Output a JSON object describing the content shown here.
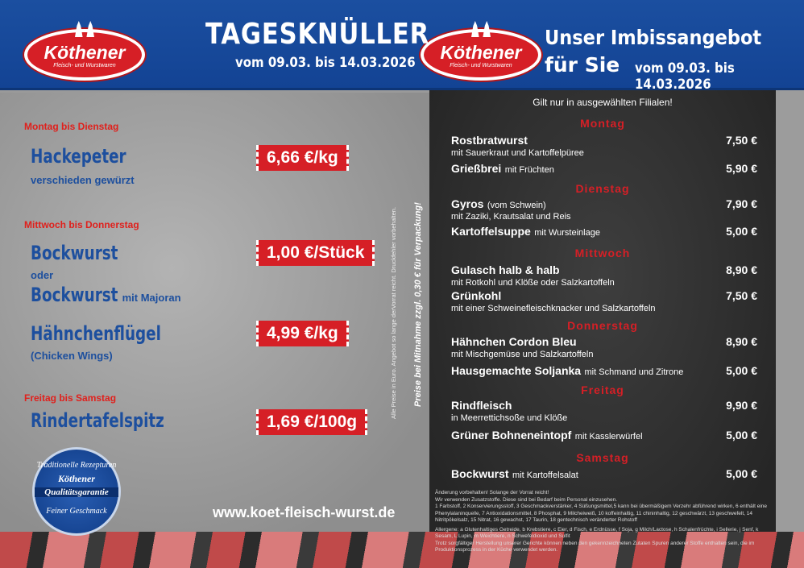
{
  "logo": {
    "name": "Köthener",
    "sub": "Fleisch- und Wurstwaren"
  },
  "left_header": {
    "title": "TAGESKNÜLLER",
    "dates": "vom 09.03. bis 14.03.2026"
  },
  "right_header": {
    "title_line1": "Unser Imbissangebot",
    "title_line2": "für Sie",
    "dates": "vom 09.03. bis 14.03.2026"
  },
  "offers": [
    {
      "days": "Montag bis Dienstag",
      "name": "Hackepeter",
      "sub": "verschieden gewürzt",
      "price": "6,66 €/kg"
    },
    {
      "days": "Mittwoch bis Donnerstag",
      "name": "Bockwurst",
      "or": "oder",
      "name2": "Bockwurst",
      "name2_extra": "mit Majoran",
      "price": "1,00 €/Stück"
    },
    {
      "name": "Hähnchenflügel",
      "sub": "(Chicken Wings)",
      "price": "4,99 €/kg"
    },
    {
      "days": "Freitag bis Samstag",
      "name": "Rindertafelspitz",
      "price": "1,69 €/100g"
    }
  ],
  "badge": {
    "top": "Traditionelle Rezepturen",
    "brand": "Köthener",
    "quality": "Qualitätsgarantie",
    "bottom": "Feiner Geschmack"
  },
  "website": "www.koet-fleisch-wurst.de",
  "side_note": "Alle Preise in Euro. Angebot so lange derVorrat reicht. Druckfehler vorbehalten.",
  "side_note2": "Preise bei Mitnahme zzgl. 0,30 € für Verpackung!",
  "menu": {
    "note": "Gilt nur in ausgewählten Filialen!",
    "days": [
      "Montag",
      "Dienstag",
      "Mittwoch",
      "Donnerstag",
      "Freitag",
      "Samstag"
    ],
    "items": [
      {
        "name": "Rostbratwurst",
        "extra": "",
        "sub": "mit Sauerkraut und Kartoffelpüree",
        "price": "7,50 €"
      },
      {
        "name": "Grießbrei",
        "extra": "mit Früchten",
        "sub": "",
        "price": "5,90 €"
      },
      {
        "name": "Gyros",
        "extra": "(vom Schwein)",
        "sub": "mit Zaziki, Krautsalat und Reis",
        "price": "7,90 €"
      },
      {
        "name": "Kartoffelsuppe",
        "extra": "mit Wursteinlage",
        "sub": "",
        "price": "5,00 €"
      },
      {
        "name": "Gulasch halb & halb",
        "extra": "",
        "sub": "mit Rotkohl und Klöße oder Salzkartoffeln",
        "price": "8,90 €"
      },
      {
        "name": "Grünkohl",
        "extra": "",
        "sub": "mit einer Schweinefleischknacker und Salzkartoffeln",
        "price": "7,50 €"
      },
      {
        "name": "Hähnchen Cordon Bleu",
        "extra": "",
        "sub": "mit Mischgemüse und Salzkartoffeln",
        "price": "8,90 €"
      },
      {
        "name": "Hausgemachte Soljanka",
        "extra": "mit Schmand und Zitrone",
        "sub": "",
        "price": "5,00 €"
      },
      {
        "name": "Rindfleisch",
        "extra": "",
        "sub": "in Meerrettichsoße und Klöße",
        "price": "9,90 €"
      },
      {
        "name": "Grüner Bohneneintopf",
        "extra": "mit Kasslerwürfel",
        "sub": "",
        "price": "5,00 €"
      },
      {
        "name": "Bockwurst",
        "extra": "mit Kartoffelsalat",
        "sub": "",
        "price": "5,00 €"
      }
    ],
    "footnotes": [
      "Änderung vorbehalten! Solange der Vorrat reicht!",
      "Wir verwenden Zusatzstoffe. Diese sind bei Bedarf beim Personal einzusehen.",
      "1 Farbstoff, 2 Konservierungsstoff, 3 Geschmackverstärker, 4 Süßungsmittel,5 kann bei übermäßigem Verzehr abführend wirken, 6 enthält eine Phenylalaninquelle, 7 Antioxidationsmittel, 8 Phosphat, 9 Milcheiweiß, 10 koffeinhaltig, 11 chininhaltig, 12 geschwärzt, 13 geschwefelt, 14 Nitritpökelsalz, 15 Nitrat, 16 gewachst, 17 Taurin, 18 gentechnisch veränderter Rohstoff",
      "Allergene: a Glutenhaltiges Getreide, b Krebstiere, c Eier, d Fisch, e Erdnüsse, f Soja, g Milch/Lactose, h Schalenfrüchte, i Sellerie, j Senf, k Sesam, L Lupin, m Weichtiere, n Schwefeldioxid und Sulfit",
      "Trotz sorgfältiger Herstellung unserer Gerichte können neben den gekennzeichneten Zutaten Spuren anderer Stoffe enthalten sein, die im Produktionsprozess in der Küche verwendet werden."
    ]
  }
}
